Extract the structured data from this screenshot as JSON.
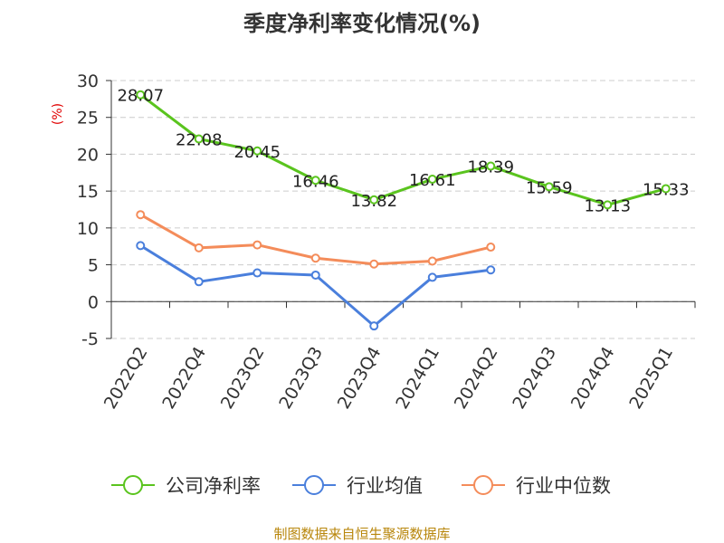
{
  "chart_data": {
    "type": "line",
    "title": "季度净利率变化情况(%)",
    "ylabel": "(%)",
    "categories": [
      "2022Q2",
      "2022Q4",
      "2023Q2",
      "2023Q3",
      "2023Q4",
      "2024Q1",
      "2024Q2",
      "2024Q3",
      "2024Q4",
      "2025Q1"
    ],
    "ylim": [
      -5,
      30
    ],
    "yticks": [
      -5,
      0,
      5,
      10,
      15,
      20,
      25,
      30
    ],
    "grid": true,
    "legend_position": "bottom",
    "series": [
      {
        "name": "公司净利率",
        "color": "#5ac41e",
        "values": [
          28.07,
          22.08,
          20.45,
          16.46,
          13.82,
          16.61,
          18.39,
          15.59,
          13.13,
          15.33
        ],
        "labels": [
          "28.07",
          "22.08",
          "20.45",
          "16.46",
          "13.82",
          "16.61",
          "18.39",
          "15.59",
          "13.13",
          "15.33"
        ]
      },
      {
        "name": "行业均值",
        "color": "#4a7fdc",
        "values": [
          7.6,
          2.7,
          3.9,
          3.6,
          -3.3,
          3.3,
          4.3,
          null,
          null,
          null
        ]
      },
      {
        "name": "行业中位数",
        "color": "#f48c5a",
        "values": [
          11.8,
          7.3,
          7.7,
          5.9,
          5.1,
          5.5,
          7.4,
          null,
          null,
          null
        ]
      }
    ]
  },
  "footer": {
    "source": "制图数据来自恒生聚源数据库"
  }
}
